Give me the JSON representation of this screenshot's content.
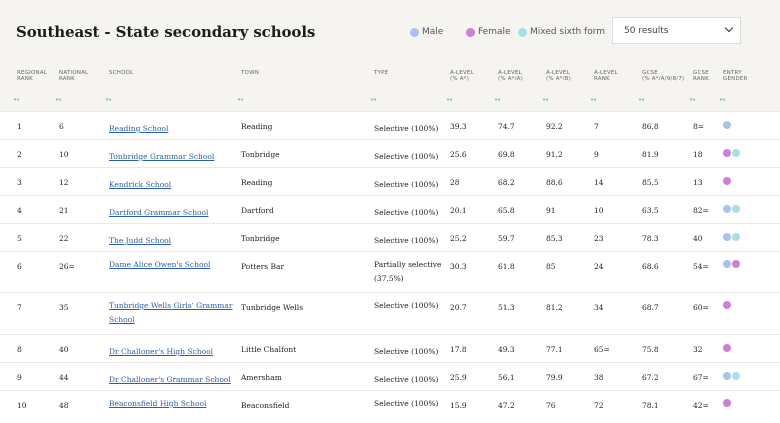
{
  "title": "Southeast - State secondary schools",
  "legend": [
    {
      "label": "Male",
      "color": "#a9c4ea"
    },
    {
      "label": "Female",
      "color": "#cc7fd6"
    },
    {
      "label": "Mixed sixth form",
      "color": "#a6dfe8"
    }
  ],
  "results_select": {
    "value": "50 results"
  },
  "colors": {
    "male": "#a9c4ea",
    "female": "#cc7fd6",
    "mixed": "#a6dfe8",
    "link": "#2b5ea8",
    "sort": "#3aa0c8"
  },
  "columns": [
    {
      "key": "regional",
      "line1": "REGIONAL",
      "line2": "RANK"
    },
    {
      "key": "national",
      "line1": "NATIONAL",
      "line2": "RANK"
    },
    {
      "key": "school",
      "line1": "SCHOOL",
      "line2": ""
    },
    {
      "key": "town",
      "line1": "TOWN",
      "line2": ""
    },
    {
      "key": "type",
      "line1": "TYPE",
      "line2": ""
    },
    {
      "key": "alevel_a",
      "line1": "A-LEVEL",
      "line2": "(% A*)"
    },
    {
      "key": "alevel_aa",
      "line1": "A-LEVEL",
      "line2": "(% A*/A)"
    },
    {
      "key": "alevel_ab",
      "line1": "A-LEVEL",
      "line2": "(% A*/B)"
    },
    {
      "key": "alevel_rank",
      "line1": "A-LEVEL",
      "line2": "RANK"
    },
    {
      "key": "gcse",
      "line1": "GCSE",
      "line2": "(% A*/A/9/8/7)"
    },
    {
      "key": "gcse_rank",
      "line1": "GCSE",
      "line2": "RANK"
    },
    {
      "key": "gender",
      "line1": "ENTRY",
      "line2": "GENDER"
    }
  ],
  "rows": [
    {
      "regional": "1",
      "national": "6",
      "school": "Reading School",
      "town": "Reading",
      "type": "Selective (100%)",
      "alevel_a": "39.3",
      "alevel_aa": "74.7",
      "alevel_ab": "92.2",
      "alevel_rank": "7",
      "gcse": "86.8",
      "gcse_rank": "8=",
      "gender": [
        "male"
      ]
    },
    {
      "regional": "2",
      "national": "10",
      "school": "Tonbridge Grammar School",
      "town": "Tonbridge",
      "type": "Selective (100%)",
      "alevel_a": "25.6",
      "alevel_aa": "69.8",
      "alevel_ab": "91.2",
      "alevel_rank": "9",
      "gcse": "81.9",
      "gcse_rank": "18",
      "gender": [
        "female",
        "mixed"
      ]
    },
    {
      "regional": "3",
      "national": "12",
      "school": "Kendrick School",
      "town": "Reading",
      "type": "Selective (100%)",
      "alevel_a": "28",
      "alevel_aa": "68.2",
      "alevel_ab": "88.6",
      "alevel_rank": "14",
      "gcse": "85.5",
      "gcse_rank": "13",
      "gender": [
        "female"
      ]
    },
    {
      "regional": "4",
      "national": "21",
      "school": "Dartford Grammar School",
      "town": "Dartford",
      "type": "Selective (100%)",
      "alevel_a": "20.1",
      "alevel_aa": "65.8",
      "alevel_ab": "91",
      "alevel_rank": "10",
      "gcse": "63.5",
      "gcse_rank": "82=",
      "gender": [
        "male",
        "mixed"
      ]
    },
    {
      "regional": "5",
      "national": "22",
      "school": "The Judd School",
      "town": "Tonbridge",
      "type": "Selective (100%)",
      "alevel_a": "25.2",
      "alevel_aa": "59.7",
      "alevel_ab": "85.3",
      "alevel_rank": "23",
      "gcse": "78.3",
      "gcse_rank": "40",
      "gender": [
        "male",
        "mixed"
      ]
    },
    {
      "regional": "6",
      "national": "26=",
      "school": "Dame Alice Owen's School",
      "town": "Potters Bar",
      "type": "Partially selective (37.5%)",
      "alevel_a": "30.3",
      "alevel_aa": "61.8",
      "alevel_ab": "85",
      "alevel_rank": "24",
      "gcse": "68.6",
      "gcse_rank": "54=",
      "gender": [
        "male",
        "female"
      ]
    },
    {
      "regional": "7",
      "national": "35",
      "school": "Tunbridge Wells Girls' Grammar School",
      "town": "Tunbridge Wells",
      "type": "Selective (100%)",
      "alevel_a": "20.7",
      "alevel_aa": "51.3",
      "alevel_ab": "81.2",
      "alevel_rank": "34",
      "gcse": "68.7",
      "gcse_rank": "60=",
      "gender": [
        "female"
      ]
    },
    {
      "regional": "8",
      "national": "40",
      "school": "Dr Challoner's High School",
      "town": "Little Chalfont",
      "type": "Selective (100%)",
      "alevel_a": "17.8",
      "alevel_aa": "49.3",
      "alevel_ab": "77.1",
      "alevel_rank": "65=",
      "gcse": "75.8",
      "gcse_rank": "32",
      "gender": [
        "female"
      ]
    },
    {
      "regional": "9",
      "national": "44",
      "school": "Dr Challoner's Grammar School",
      "town": "Amersham",
      "type": "Selective (100%)",
      "alevel_a": "25.9",
      "alevel_aa": "56.1",
      "alevel_ab": "79.9",
      "alevel_rank": "38",
      "gcse": "67.2",
      "gcse_rank": "67=",
      "gender": [
        "male",
        "mixed"
      ]
    },
    {
      "regional": "10",
      "national": "48",
      "school": "Beaconsfield High School",
      "town": "Beaconsfield",
      "type": "Selective (100%)",
      "alevel_a": "15.9",
      "alevel_aa": "47.2",
      "alevel_ab": "76",
      "alevel_rank": "72",
      "gcse": "78.1",
      "gcse_rank": "42=",
      "gender": [
        "female"
      ]
    }
  ]
}
